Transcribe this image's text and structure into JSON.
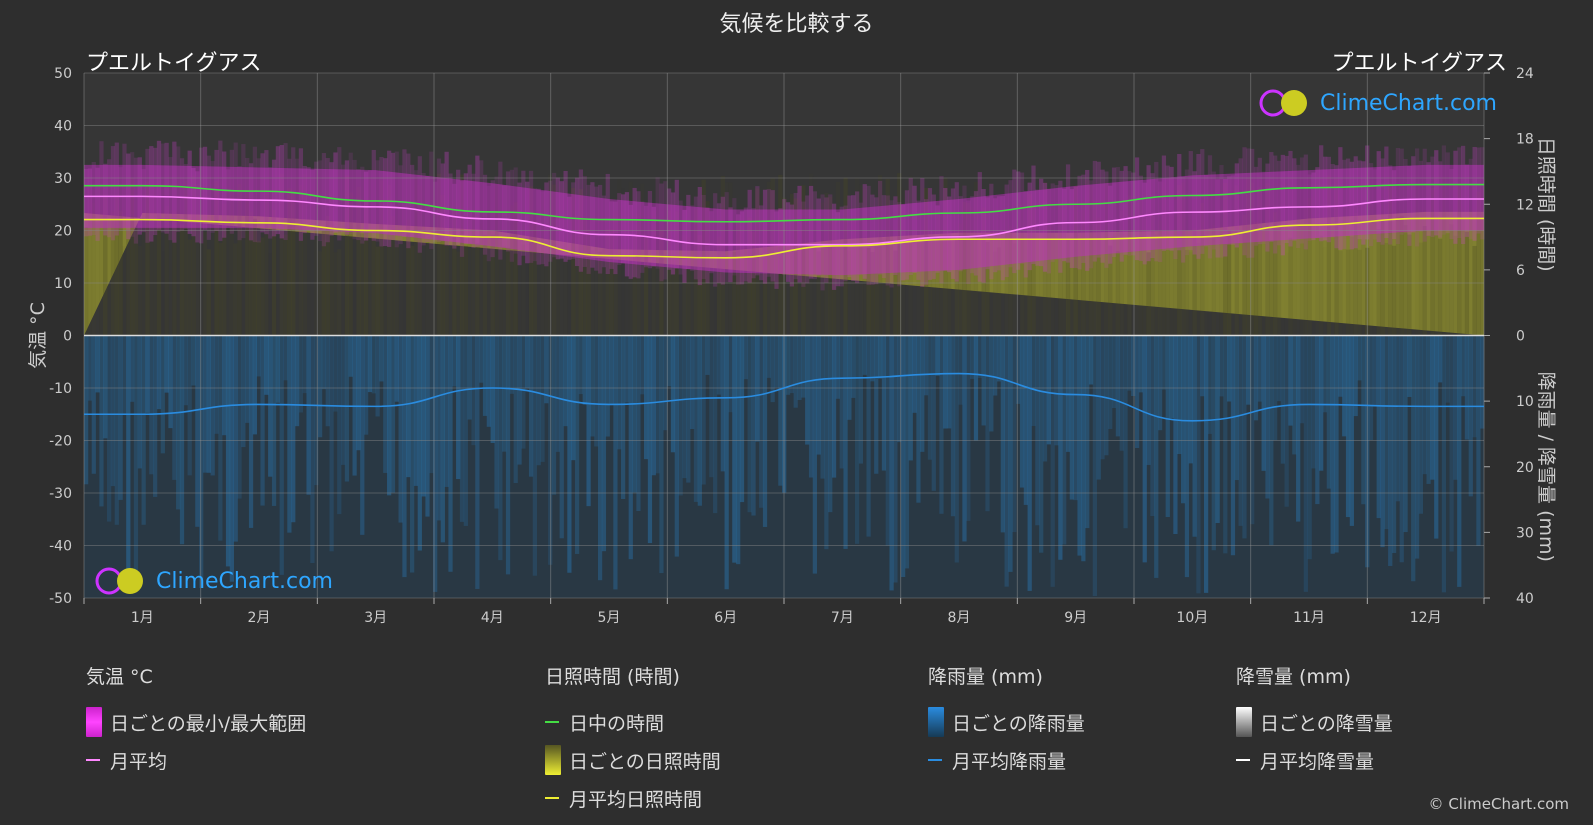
{
  "title": "気候を比較する",
  "location_left": "プエルトイグアス",
  "location_right": "プエルトイグアス",
  "logo_text": "ClimeChart.com",
  "copyright": "© ClimeChart.com",
  "colors": {
    "background": "#2e2e2e",
    "temp_range": "#c040c0",
    "temp_mean": "#ff88ff",
    "daylight": "#44dd44",
    "sunshine_fill": "#999933",
    "sunshine_mean": "#eeee33",
    "rain": "#1e6ea0",
    "rain_mean": "#2a8ce0",
    "snow_mean": "#ffffff"
  },
  "legend": {
    "temperature": {
      "heading": "気温 °C",
      "items": [
        "日ごとの最小/最大範囲",
        "月平均"
      ]
    },
    "sunshine": {
      "heading": "日照時間 (時間)",
      "items": [
        "日中の時間",
        "日ごとの日照時間",
        "月平均日照時間"
      ]
    },
    "rain": {
      "heading": "降雨量 (mm)",
      "items": [
        "日ごとの降雨量",
        "月平均降雨量"
      ]
    },
    "snow": {
      "heading": "降雪量 (mm)",
      "items": [
        "日ごとの降雪量",
        "月平均降雪量"
      ]
    }
  },
  "chart_data": {
    "type": "line",
    "categories": [
      "1月",
      "2月",
      "3月",
      "4月",
      "5月",
      "6月",
      "7月",
      "8月",
      "9月",
      "10月",
      "11月",
      "12月"
    ],
    "y_left": {
      "label": "気温 °C",
      "lim": [
        -50,
        50
      ],
      "ticks": [
        50,
        40,
        30,
        20,
        10,
        0,
        -10,
        -20,
        -30,
        -40,
        -50
      ]
    },
    "y_right_top": {
      "label": "日照時間 (時間)",
      "lim": [
        0,
        24
      ],
      "ticks": [
        24,
        18,
        12,
        6,
        0
      ]
    },
    "y_right_bottom": {
      "label": "降雨量 / 降雪量 (mm)",
      "lim": [
        0,
        40
      ],
      "ticks": [
        0,
        10,
        20,
        30,
        40
      ]
    },
    "grid": true,
    "series": [
      {
        "name": "日ごとの最小/最大範囲",
        "axis": "temp",
        "kind": "band",
        "low": [
          20.5,
          20.5,
          19.5,
          17.0,
          14.0,
          12.0,
          11.5,
          12.5,
          15.0,
          17.0,
          18.5,
          20.0
        ],
        "high": [
          32.5,
          32.0,
          31.5,
          29.0,
          26.0,
          24.0,
          24.0,
          26.0,
          28.5,
          30.5,
          31.5,
          32.5
        ]
      },
      {
        "name": "月平均",
        "axis": "temp",
        "values": [
          26.5,
          25.8,
          24.5,
          22.2,
          19.2,
          17.3,
          17.3,
          18.8,
          21.5,
          23.5,
          24.5,
          26.0
        ]
      },
      {
        "name": "日中の時間",
        "axis": "sunshine",
        "values": [
          13.7,
          13.2,
          12.3,
          11.3,
          10.6,
          10.4,
          10.6,
          11.2,
          12.0,
          12.8,
          13.5,
          13.8
        ]
      },
      {
        "name": "月平均日照時間",
        "axis": "sunshine",
        "values": [
          10.6,
          10.3,
          9.6,
          9.0,
          7.3,
          7.1,
          8.2,
          8.8,
          8.8,
          9.0,
          10.1,
          10.7
        ]
      },
      {
        "name": "月平均降雨量",
        "axis": "rain",
        "values": [
          12.0,
          10.5,
          10.8,
          8.0,
          10.5,
          9.5,
          6.5,
          5.8,
          9.0,
          13.0,
          10.5,
          10.8
        ]
      },
      {
        "name": "月平均降雪量",
        "axis": "rain",
        "values": [
          0,
          0,
          0,
          0,
          0,
          0,
          0,
          0,
          0,
          0,
          0,
          0
        ]
      }
    ]
  }
}
